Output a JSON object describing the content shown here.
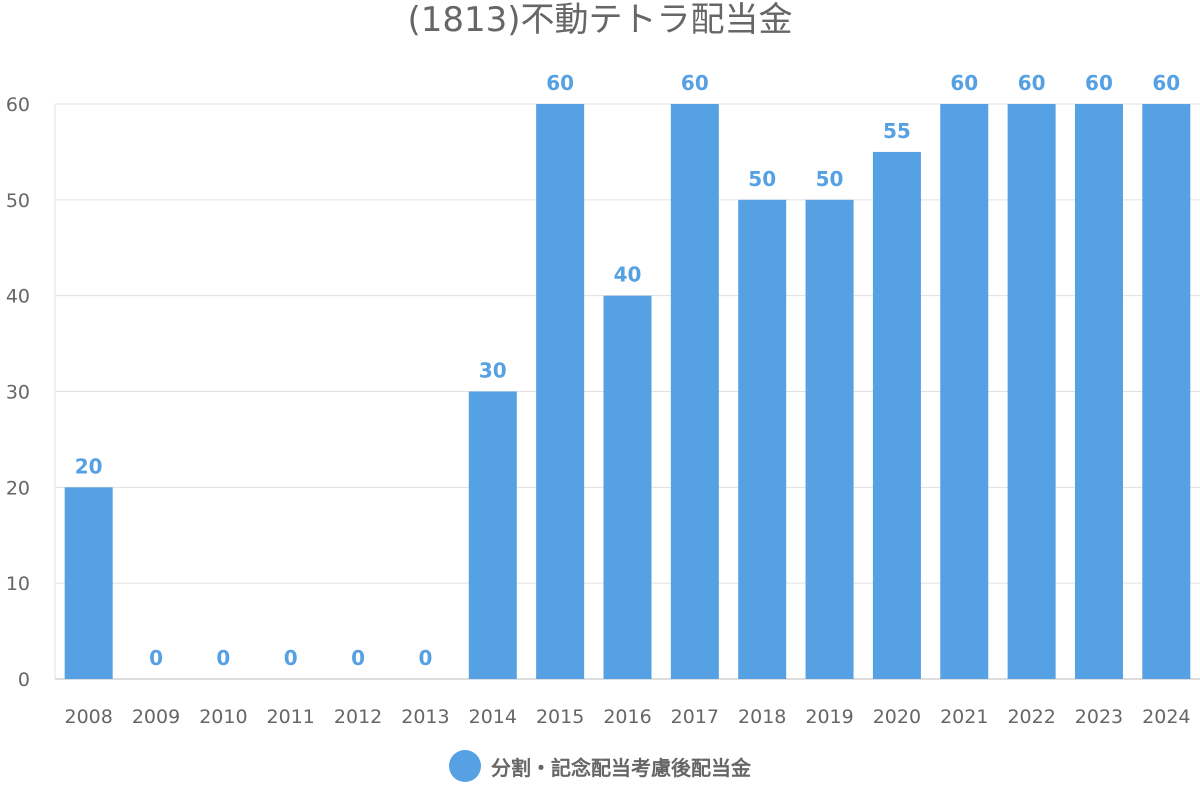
{
  "chart_data": {
    "type": "bar",
    "title": "(1813)不動テトラ配当金",
    "categories": [
      "2008",
      "2009",
      "2010",
      "2011",
      "2012",
      "2013",
      "2014",
      "2015",
      "2016",
      "2017",
      "2018",
      "2019",
      "2020",
      "2021",
      "2022",
      "2023",
      "2024"
    ],
    "series": [
      {
        "name": "分割・記念配当考慮後配当金",
        "values": [
          20,
          0,
          0,
          0,
          0,
          0,
          30,
          60,
          40,
          60,
          50,
          50,
          55,
          60,
          60,
          60,
          60
        ],
        "color": "#56a0e4"
      }
    ],
    "ylim": [
      0,
      60
    ],
    "yticks": [
      0,
      10,
      20,
      30,
      40,
      50,
      60
    ],
    "grid": true,
    "data_labels": true,
    "legend_position": "bottom",
    "xlabel": "",
    "ylabel": ""
  }
}
